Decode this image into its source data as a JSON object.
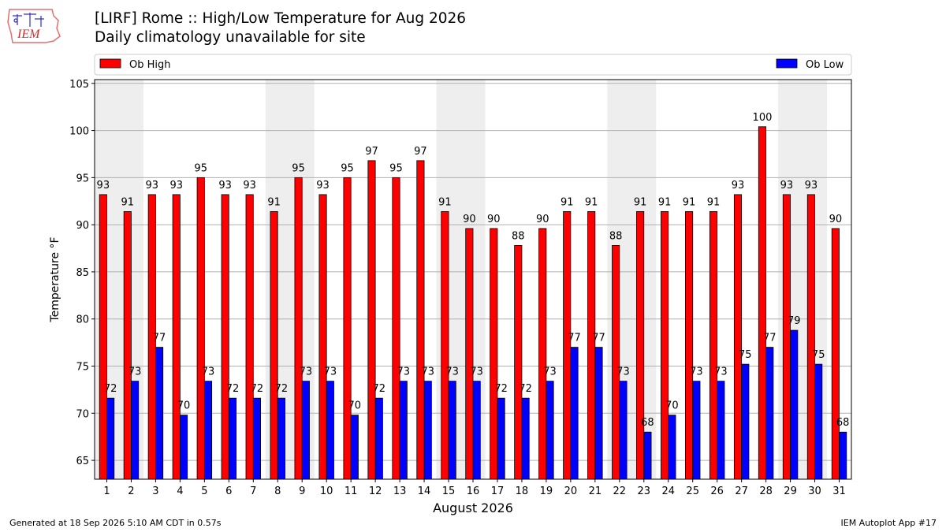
{
  "header": {
    "logo_text": "IEM",
    "title": "[LIRF] Rome :: High/Low Temperature for Aug 2026",
    "subtitle": "Daily climatology unavailable for site"
  },
  "footer": {
    "generated": "Generated at 18 Sep 2026 5:10 AM CDT in 0.57s",
    "app": "IEM Autoplot App #17"
  },
  "chart_data": {
    "type": "bar",
    "xlabel": "August 2026",
    "ylabel": "Temperature °F",
    "ylim": [
      63,
      105.4
    ],
    "yticks": [
      65,
      70,
      75,
      80,
      85,
      90,
      95,
      100,
      105
    ],
    "grid": true,
    "legend_position": "top",
    "categories": [
      "1",
      "2",
      "3",
      "4",
      "5",
      "6",
      "7",
      "8",
      "9",
      "10",
      "11",
      "12",
      "13",
      "14",
      "15",
      "16",
      "17",
      "18",
      "19",
      "20",
      "21",
      "22",
      "23",
      "24",
      "25",
      "26",
      "27",
      "28",
      "29",
      "30",
      "31"
    ],
    "shaded_weekends": [
      [
        1,
        2
      ],
      [
        8,
        9
      ],
      [
        15,
        16
      ],
      [
        22,
        23
      ],
      [
        29,
        30
      ]
    ],
    "series": [
      {
        "name": "Ob High",
        "color": "#ff0000",
        "values": [
          93.2,
          91.4,
          93.2,
          93.2,
          95.0,
          93.2,
          93.2,
          91.4,
          95.0,
          93.2,
          95.0,
          96.8,
          95.0,
          96.8,
          91.4,
          89.6,
          89.6,
          87.8,
          89.6,
          91.4,
          91.4,
          87.8,
          91.4,
          91.4,
          91.4,
          91.4,
          93.2,
          100.4,
          93.2,
          93.2,
          89.6
        ],
        "labels": [
          "93",
          "91",
          "93",
          "93",
          "95",
          "93",
          "93",
          "91",
          "95",
          "93",
          "95",
          "97",
          "95",
          "97",
          "91",
          "90",
          "90",
          "88",
          "90",
          "91",
          "91",
          "88",
          "91",
          "91",
          "91",
          "91",
          "93",
          "100",
          "93",
          "93",
          "90"
        ]
      },
      {
        "name": "Ob Low",
        "color": "#0000ff",
        "values": [
          71.6,
          73.4,
          77.0,
          69.8,
          73.4,
          71.6,
          71.6,
          71.6,
          73.4,
          73.4,
          69.8,
          71.6,
          73.4,
          73.4,
          73.4,
          73.4,
          71.6,
          71.6,
          73.4,
          77.0,
          77.0,
          73.4,
          68.0,
          69.8,
          73.4,
          73.4,
          75.2,
          77.0,
          78.8,
          75.2,
          68.0
        ],
        "labels": [
          "72",
          "73",
          "77",
          "70",
          "73",
          "72",
          "72",
          "72",
          "73",
          "73",
          "70",
          "72",
          "73",
          "73",
          "73",
          "73",
          "72",
          "72",
          "73",
          "77",
          "77",
          "73",
          "68",
          "70",
          "73",
          "73",
          "75",
          "77",
          "79",
          "75",
          "68"
        ]
      }
    ]
  }
}
